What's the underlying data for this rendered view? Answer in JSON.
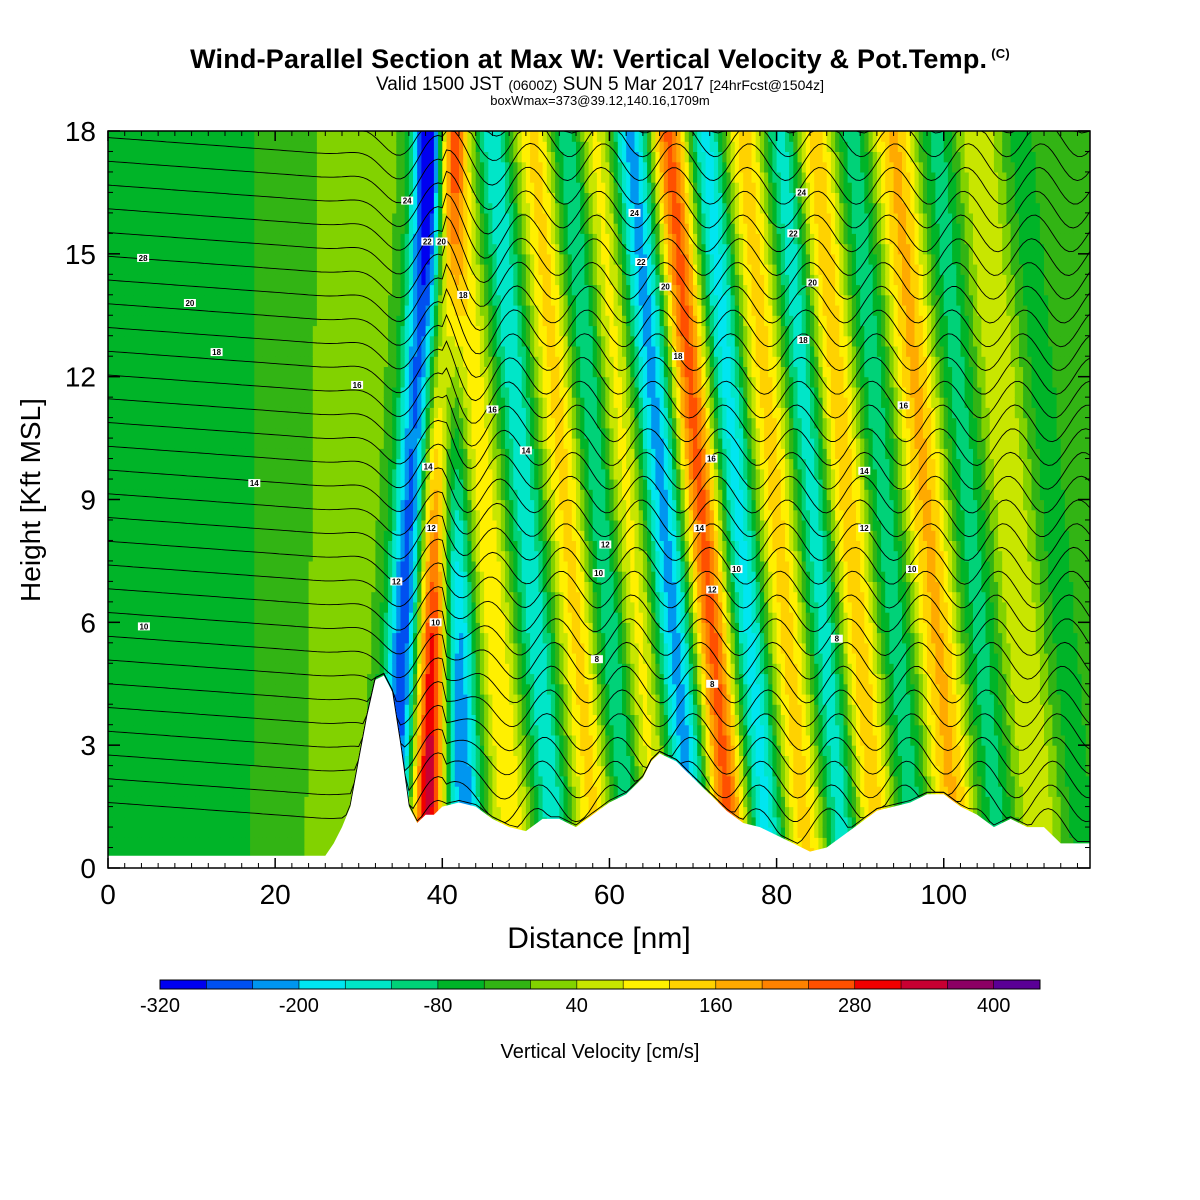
{
  "title": {
    "main": "Wind-Parallel Section at Max W: Vertical Velocity & Pot.Temp.",
    "copyright": "(C)",
    "valid_prefix": "Valid 1500 JST",
    "valid_z": "(0600Z)",
    "valid_date": "SUN 5 Mar 2017",
    "forecast": "[24hrFcst@1504z]",
    "box": "boxWmax=373@39.12,140.16,1709m"
  },
  "chart_data": {
    "type": "heatmap",
    "xlabel": "Distance [nm]",
    "ylabel": "Height [Kft MSL]",
    "xlim": [
      0,
      117.5
    ],
    "ylim": [
      0,
      18
    ],
    "x_ticks": [
      "0",
      "20",
      "40",
      "60",
      "80",
      "100"
    ],
    "x_tick_values": [
      0,
      20,
      40,
      60,
      80,
      100
    ],
    "y_ticks": [
      "0",
      "3",
      "6",
      "9",
      "12",
      "15",
      "18"
    ],
    "y_tick_values": [
      0,
      3,
      6,
      9,
      12,
      15,
      18
    ],
    "colorbar": {
      "label": "Vertical Velocity [cm/s]",
      "tick_labels": [
        "-320",
        "-200",
        "-80",
        "40",
        "160",
        "280",
        "400"
      ],
      "tick_values": [
        -320,
        -200,
        -80,
        40,
        160,
        280,
        400
      ],
      "bounds": [
        -320,
        440
      ],
      "step": 40,
      "colors": [
        "#0000f0",
        "#0050f0",
        "#0096f0",
        "#00e6f0",
        "#00e6c8",
        "#00d278",
        "#00b428",
        "#32b414",
        "#82d200",
        "#c8e600",
        "#fff000",
        "#ffd200",
        "#ffaa00",
        "#ff8200",
        "#ff5000",
        "#f00000",
        "#c80032",
        "#8c0064",
        "#5a0096"
      ]
    },
    "terrain": {
      "x": [
        0,
        26,
        27,
        28,
        29,
        30,
        31,
        32,
        33,
        34,
        35,
        36,
        37,
        38,
        39,
        40,
        42,
        44,
        46,
        48,
        50,
        52,
        54,
        56,
        58,
        60,
        62,
        64,
        65,
        66,
        68,
        70,
        72,
        74,
        76,
        78,
        80,
        82,
        84,
        86,
        88,
        90,
        92,
        94,
        96,
        98,
        100,
        102,
        104,
        106,
        108,
        110,
        112,
        114,
        117.5
      ],
      "y": [
        0.3,
        0.3,
        0.6,
        1.0,
        1.5,
        2.6,
        3.7,
        4.6,
        4.7,
        4.3,
        3.0,
        1.5,
        1.1,
        1.3,
        1.3,
        1.5,
        1.6,
        1.5,
        1.2,
        1.0,
        0.9,
        1.2,
        1.2,
        1.0,
        1.3,
        1.6,
        1.8,
        2.2,
        2.6,
        2.8,
        2.6,
        2.2,
        1.8,
        1.4,
        1.1,
        1.0,
        0.8,
        0.6,
        0.4,
        0.5,
        0.8,
        1.1,
        1.4,
        1.5,
        1.6,
        1.8,
        1.8,
        1.5,
        1.3,
        1.0,
        1.2,
        1.0,
        1.0,
        0.6,
        0.6
      ]
    },
    "velocity_features": [
      {
        "x": 0,
        "w": 14,
        "v": -60,
        "tilt": 0
      },
      {
        "x": 15,
        "w": 14,
        "v": -30,
        "tilt": 0
      },
      {
        "x": 27,
        "w": 6,
        "v": 30,
        "tilt": 2
      },
      {
        "x": 35,
        "w": 2.2,
        "v": -280,
        "tilt": 4
      },
      {
        "x": 38.6,
        "w": 2.0,
        "v": 360,
        "tilt": 2
      },
      {
        "x": 42,
        "w": 2.2,
        "v": -240,
        "tilt": -3
      },
      {
        "x": 47,
        "w": 2.2,
        "v": 120,
        "tilt": -6
      },
      {
        "x": 52,
        "w": 2.2,
        "v": -150,
        "tilt": -6
      },
      {
        "x": 57,
        "w": 2.4,
        "v": 140,
        "tilt": -6
      },
      {
        "x": 61,
        "w": 2.4,
        "v": -140,
        "tilt": -6
      },
      {
        "x": 64,
        "w": 2.4,
        "v": 120,
        "tilt": -6
      },
      {
        "x": 68.5,
        "w": 2.4,
        "v": -220,
        "tilt": -6
      },
      {
        "x": 73,
        "w": 2.2,
        "v": 260,
        "tilt": -6
      },
      {
        "x": 77.5,
        "w": 2.2,
        "v": -180,
        "tilt": -6
      },
      {
        "x": 82,
        "w": 2.4,
        "v": 140,
        "tilt": -6
      },
      {
        "x": 86.5,
        "w": 2.2,
        "v": -150,
        "tilt": -6
      },
      {
        "x": 90.5,
        "w": 2.4,
        "v": 150,
        "tilt": -6
      },
      {
        "x": 95,
        "w": 2.2,
        "v": -110,
        "tilt": -6
      },
      {
        "x": 100,
        "w": 2.6,
        "v": 170,
        "tilt": -6
      },
      {
        "x": 105,
        "w": 2.4,
        "v": -100,
        "tilt": -6
      },
      {
        "x": 110,
        "w": 2.6,
        "v": 80,
        "tilt": -6
      },
      {
        "x": 115,
        "w": 2.4,
        "v": -60,
        "tilt": -6
      }
    ],
    "theta_contour_labels": [
      {
        "text": "28",
        "x": 4.2,
        "y": 14.9
      },
      {
        "text": "20",
        "x": 9.8,
        "y": 13.8
      },
      {
        "text": "18",
        "x": 13.0,
        "y": 12.6
      },
      {
        "text": "16",
        "x": 29.8,
        "y": 11.8
      },
      {
        "text": "14",
        "x": 17.5,
        "y": 9.4
      },
      {
        "text": "10",
        "x": 4.3,
        "y": 5.9
      },
      {
        "text": "24",
        "x": 35.8,
        "y": 16.3
      },
      {
        "text": "22",
        "x": 38.2,
        "y": 15.3
      },
      {
        "text": "20",
        "x": 39.9,
        "y": 15.3
      },
      {
        "text": "18",
        "x": 42.5,
        "y": 14.0
      },
      {
        "text": "14",
        "x": 38.3,
        "y": 9.8
      },
      {
        "text": "12",
        "x": 38.7,
        "y": 8.3
      },
      {
        "text": "12",
        "x": 34.5,
        "y": 7.0
      },
      {
        "text": "10",
        "x": 39.2,
        "y": 6.0
      },
      {
        "text": "16",
        "x": 46.0,
        "y": 11.2
      },
      {
        "text": "14",
        "x": 50.0,
        "y": 10.2
      },
      {
        "text": "12",
        "x": 59.5,
        "y": 7.9
      },
      {
        "text": "10",
        "x": 58.7,
        "y": 7.2
      },
      {
        "text": "8",
        "x": 58.5,
        "y": 5.1
      },
      {
        "text": "24",
        "x": 63.0,
        "y": 16.0
      },
      {
        "text": "22",
        "x": 63.8,
        "y": 14.8
      },
      {
        "text": "20",
        "x": 66.7,
        "y": 14.2
      },
      {
        "text": "18",
        "x": 68.2,
        "y": 12.5
      },
      {
        "text": "16",
        "x": 72.2,
        "y": 10.0
      },
      {
        "text": "14",
        "x": 70.8,
        "y": 8.3
      },
      {
        "text": "12",
        "x": 72.3,
        "y": 6.8
      },
      {
        "text": "10",
        "x": 75.2,
        "y": 7.3
      },
      {
        "text": "8",
        "x": 72.3,
        "y": 4.5
      },
      {
        "text": "24",
        "x": 83.0,
        "y": 16.5
      },
      {
        "text": "22",
        "x": 82.0,
        "y": 15.5
      },
      {
        "text": "20",
        "x": 84.3,
        "y": 14.3
      },
      {
        "text": "18",
        "x": 83.2,
        "y": 12.9
      },
      {
        "text": "16",
        "x": 95.2,
        "y": 11.3
      },
      {
        "text": "14",
        "x": 90.5,
        "y": 9.7
      },
      {
        "text": "12",
        "x": 90.5,
        "y": 8.3
      },
      {
        "text": "10",
        "x": 96.2,
        "y": 7.3
      },
      {
        "text": "8",
        "x": 87.2,
        "y": 5.6
      }
    ]
  }
}
